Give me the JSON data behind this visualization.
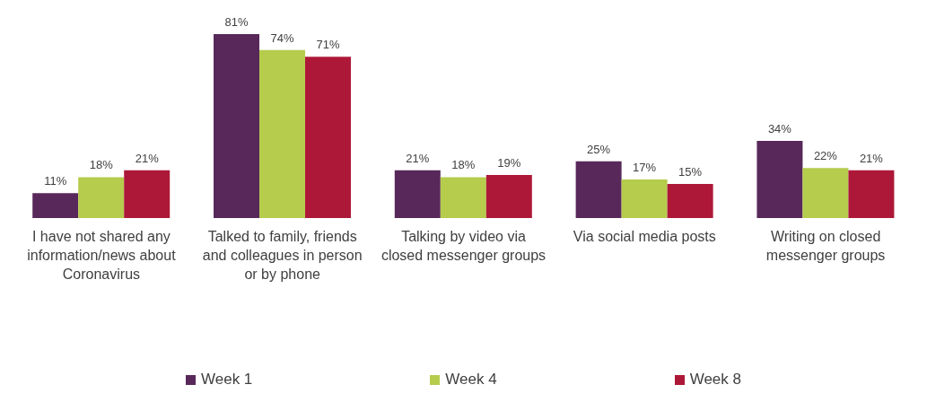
{
  "chart_data": {
    "type": "bar",
    "categories": [
      "I have not shared any information/news about Coronavirus",
      "Talked to family, friends and colleagues in person or by phone",
      "Talking by video via closed messenger groups",
      "Via social media posts",
      "Writing on closed messenger groups"
    ],
    "series": [
      {
        "name": "Week 1",
        "color": "#58285a",
        "values": [
          11,
          81,
          21,
          25,
          34
        ],
        "value_labels": [
          "11%",
          "81%",
          "21%",
          "25%",
          "34%"
        ]
      },
      {
        "name": "Week 4",
        "color": "#b5cc4c",
        "values": [
          18,
          74,
          18,
          17,
          22
        ],
        "value_labels": [
          "18%",
          "74%",
          "18%",
          "17%",
          "22%"
        ]
      },
      {
        "name": "Week 8",
        "color": "#ae1838",
        "values": [
          21,
          71,
          19,
          15,
          21
        ],
        "value_labels": [
          "21%",
          "71%",
          "19%",
          "15%",
          "21%"
        ]
      }
    ],
    "legend": "bottom",
    "grid": false
  }
}
